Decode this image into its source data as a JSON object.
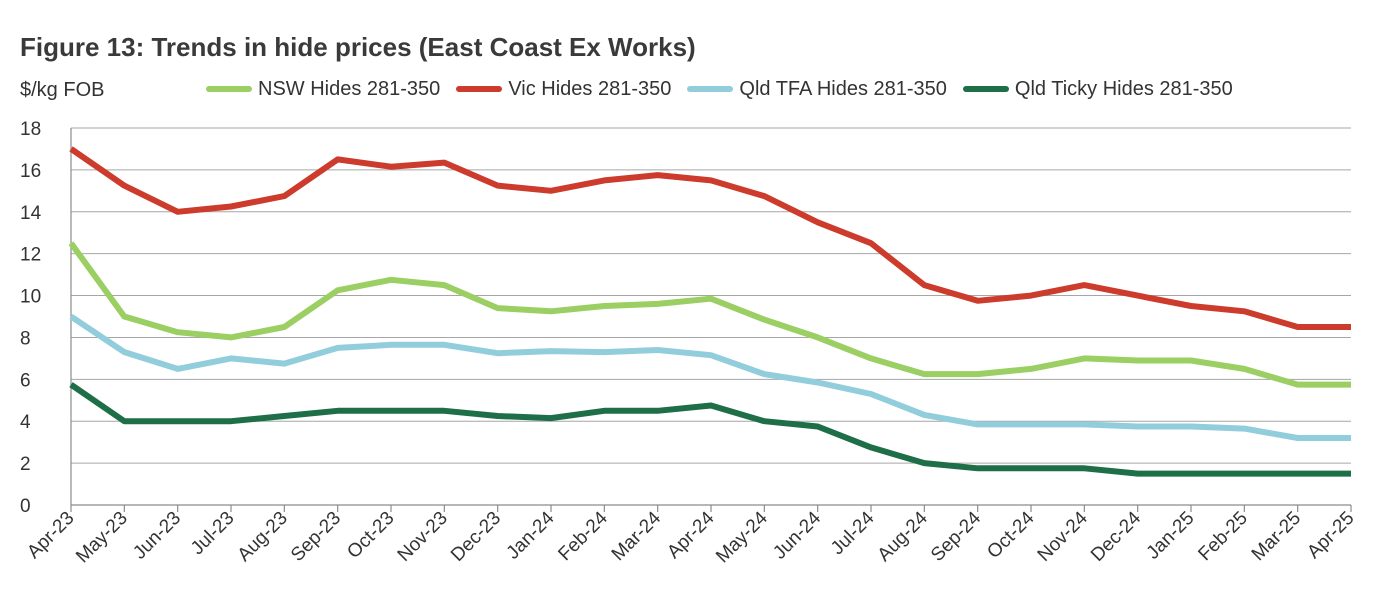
{
  "figure": {
    "title": "Figure 13: Trends in hide prices (East Coast Ex Works)"
  },
  "chart_data": {
    "type": "line",
    "title": "Figure 13: Trends in hide prices (East Coast Ex Works)",
    "xlabel": "",
    "ylabel": "$/kg FOB",
    "ylim": [
      0,
      18
    ],
    "yticks": [
      "0",
      "2",
      "4",
      "6",
      "8",
      "10",
      "12",
      "14",
      "16",
      "18"
    ],
    "grid": true,
    "legend_position": "top",
    "categories": [
      "Apr-23",
      "May-23",
      "Jun-23",
      "Jul-23",
      "Aug-23",
      "Sep-23",
      "Oct-23",
      "Nov-23",
      "Dec-23",
      "Jan-24",
      "Feb-24",
      "Mar-24",
      "Apr-24",
      "May-24",
      "Jun-24",
      "Jul-24",
      "Aug-24",
      "Sep-24",
      "Oct-24",
      "Nov-24",
      "Dec-24",
      "Jan-25",
      "Feb-25",
      "Mar-25",
      "Apr-25"
    ],
    "series": [
      {
        "name": "NSW Hides 281-350",
        "color": "#9bcf63",
        "values": [
          12.5,
          9.0,
          8.25,
          8.0,
          8.5,
          10.25,
          10.75,
          10.5,
          9.4,
          9.25,
          9.5,
          9.6,
          9.85,
          8.85,
          8.0,
          7.0,
          6.25,
          6.25,
          6.5,
          7.0,
          6.9,
          6.9,
          6.5,
          5.75,
          5.75
        ]
      },
      {
        "name": "Vic Hides 281-350",
        "color": "#cc3b2b",
        "values": [
          17.0,
          15.25,
          14.0,
          14.25,
          14.75,
          16.5,
          16.15,
          16.35,
          15.25,
          15.0,
          15.5,
          15.75,
          15.5,
          14.75,
          13.5,
          12.5,
          10.5,
          9.75,
          10.0,
          10.5,
          10.0,
          9.5,
          9.25,
          8.5,
          8.5
        ]
      },
      {
        "name": "Qld TFA Hides 281-350",
        "color": "#92cddc",
        "values": [
          9.0,
          7.3,
          6.5,
          7.0,
          6.75,
          7.5,
          7.65,
          7.65,
          7.25,
          7.35,
          7.3,
          7.4,
          7.15,
          6.25,
          5.85,
          5.3,
          4.3,
          3.85,
          3.85,
          3.85,
          3.75,
          3.75,
          3.65,
          3.2,
          3.2
        ]
      },
      {
        "name": "Qld Ticky Hides 281-350",
        "color": "#1e6e47",
        "values": [
          5.75,
          4.0,
          4.0,
          4.0,
          4.25,
          4.5,
          4.5,
          4.5,
          4.25,
          4.15,
          4.5,
          4.5,
          4.75,
          4.0,
          3.75,
          2.75,
          2.0,
          1.75,
          1.75,
          1.75,
          1.5,
          1.5,
          1.5,
          1.5,
          1.5
        ]
      }
    ]
  }
}
